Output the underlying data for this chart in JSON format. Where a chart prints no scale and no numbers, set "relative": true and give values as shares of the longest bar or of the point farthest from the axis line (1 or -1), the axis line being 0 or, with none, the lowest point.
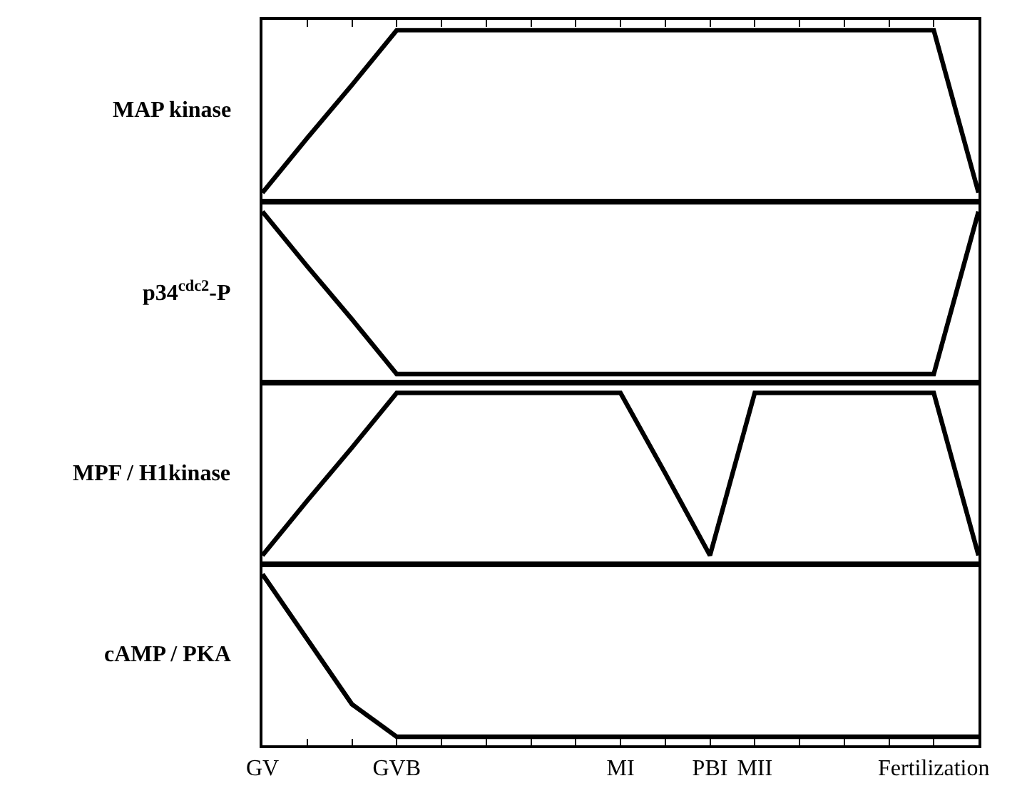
{
  "chart_data": [
    {
      "type": "line",
      "relative": true,
      "ylabel": "MAP kinase",
      "tick_labels": false,
      "categories": [
        null,
        null,
        null,
        null,
        null,
        null,
        null,
        null,
        null,
        null,
        null,
        null,
        null,
        null,
        null,
        null,
        null
      ],
      "series": [
        {
          "color": "#000000",
          "values": [
            0.05,
            0.37,
            0.68,
            1,
            1,
            1,
            1,
            1,
            1,
            1,
            1,
            1,
            1,
            1,
            1,
            1,
            0.05
          ]
        }
      ]
    },
    {
      "type": "line",
      "relative": true,
      "ylabel": "p34$^{cdc2}$-P",
      "tick_labels": false,
      "categories": [
        null,
        null,
        null,
        null,
        null,
        null,
        null,
        null,
        null,
        null,
        null,
        null,
        null,
        null,
        null,
        null,
        null
      ],
      "series": [
        {
          "color": "#000000",
          "values": [
            1,
            0.68,
            0.37,
            0.05,
            0.05,
            0.05,
            0.05,
            0.05,
            0.05,
            0.05,
            0.05,
            0.05,
            0.05,
            0.05,
            0.05,
            0.05,
            1
          ]
        }
      ]
    },
    {
      "type": "line",
      "relative": true,
      "ylabel": "MPF / H1kinase",
      "tick_labels": false,
      "categories": [
        null,
        null,
        null,
        null,
        null,
        null,
        null,
        null,
        null,
        null,
        null,
        null,
        null,
        null,
        null,
        null,
        null
      ],
      "series": [
        {
          "color": "#000000",
          "values": [
            0.05,
            0.37,
            0.68,
            1,
            1,
            1,
            1,
            1,
            1,
            0.53,
            0.05,
            1,
            1,
            1,
            1,
            1,
            0.05
          ]
        }
      ]
    },
    {
      "type": "line",
      "relative": true,
      "ylabel": "cAMP / PKA",
      "tick_labels": "x",
      "categories": [
        "GV",
        null,
        null,
        "GVB",
        null,
        null,
        null,
        null,
        "MI",
        null,
        "PBI",
        "MII",
        null,
        null,
        null,
        "Fertilization",
        null
      ],
      "series": [
        {
          "color": "#000000",
          "values": [
            1,
            0.62,
            0.24,
            0.05,
            0.05,
            0.05,
            0.05,
            0.05,
            0.05,
            0.05,
            0.05,
            0.05,
            0.05,
            0.05,
            0.05,
            0.05,
            0.05
          ]
        }
      ]
    }
  ]
}
